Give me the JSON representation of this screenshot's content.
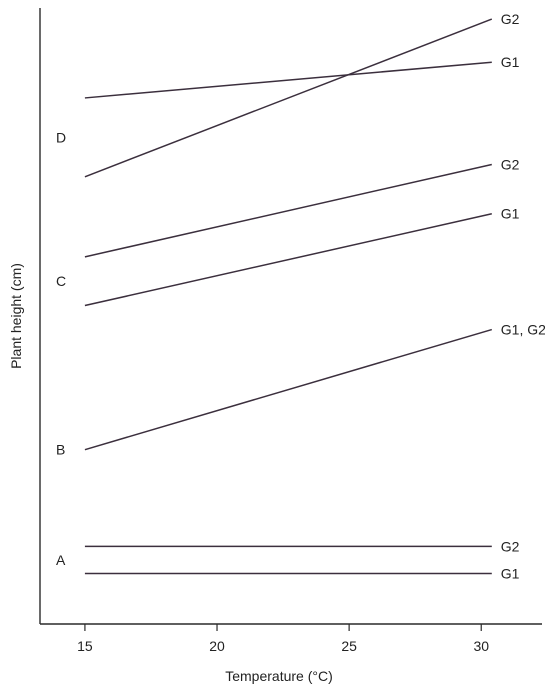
{
  "chart_data": {
    "type": "line",
    "title": "",
    "xlabel": "Temperature (°C)",
    "ylabel": "Plant height (cm)",
    "xlim": [
      13.3,
      32.3
    ],
    "ylim": [
      0,
      100
    ],
    "x_ticks": [
      15,
      20,
      25,
      30
    ],
    "y_ticks": [],
    "grid": false,
    "legend": "none",
    "line_color": "#3b2f3d",
    "groups": [
      {
        "label": "A",
        "series": [
          {
            "name": "G2",
            "x": [
              15,
              30.4
            ],
            "y": [
              12.6,
              12.6
            ]
          },
          {
            "name": "G1",
            "x": [
              15,
              30.4
            ],
            "y": [
              8.2,
              8.2
            ]
          }
        ]
      },
      {
        "label": "B",
        "series": [
          {
            "name": "G1, G2",
            "x": [
              15,
              30.4
            ],
            "y": [
              28.3,
              47.8
            ]
          }
        ]
      },
      {
        "label": "C",
        "series": [
          {
            "name": "G2",
            "x": [
              15,
              30.4
            ],
            "y": [
              59.6,
              74.6
            ]
          },
          {
            "name": "G1",
            "x": [
              15,
              30.4
            ],
            "y": [
              51.7,
              66.6
            ]
          }
        ]
      },
      {
        "label": "D",
        "series": [
          {
            "name": "G2",
            "x": [
              15,
              30.4
            ],
            "y": [
              72.6,
              98.2
            ]
          },
          {
            "name": "G1",
            "x": [
              15,
              30.4
            ],
            "y": [
              85.4,
              91.2
            ]
          }
        ]
      }
    ]
  }
}
